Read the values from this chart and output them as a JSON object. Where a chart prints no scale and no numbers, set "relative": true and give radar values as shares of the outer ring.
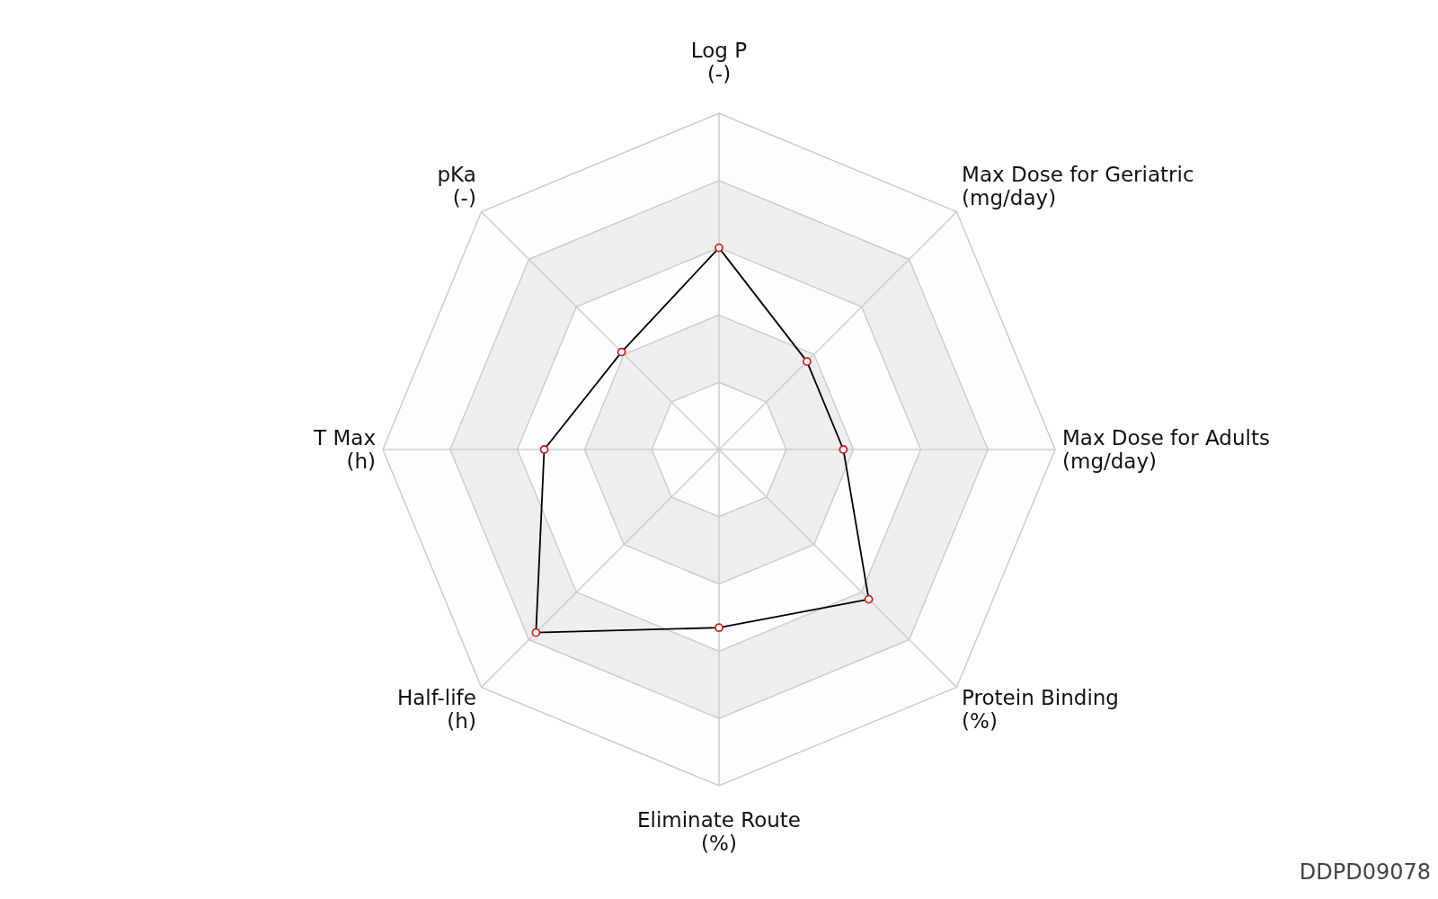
{
  "chart_data": {
    "type": "radar",
    "relative": true,
    "grid": true,
    "marker": "circle",
    "categories": [
      "Log P\n(-)",
      "Max Dose for Geriatric\n(mg/day)",
      "Max Dose for Adults\n(mg/day)",
      "Protein Binding\n(%)",
      "Eliminate Route\n(%)",
      "Half-life\n(h)",
      "T Max\n(h)",
      "pKa\n(-)"
    ],
    "series": [
      {
        "color": "#000000",
        "values": [
          0.6,
          0.37,
          0.37,
          0.63,
          0.53,
          0.77,
          0.52,
          0.41
        ]
      }
    ],
    "annotations": [
      "DDPD09078"
    ]
  }
}
